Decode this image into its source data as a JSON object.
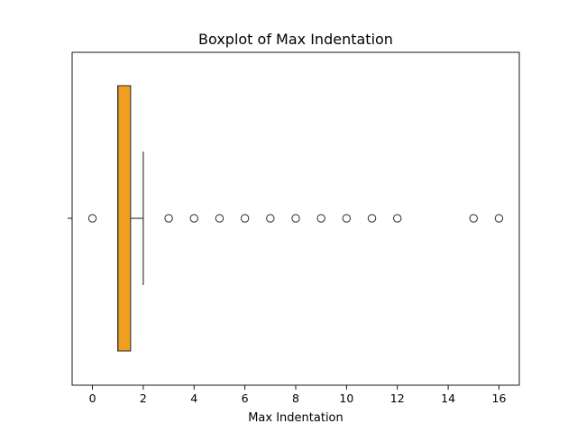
{
  "chart_data": {
    "type": "boxplot",
    "title": "Boxplot of Max Indentation",
    "xlabel": "Max Indentation",
    "ylabel": "",
    "orientation": "horizontal",
    "xlim": [
      -0.8,
      16.8
    ],
    "xticks": [
      0,
      2,
      4,
      6,
      8,
      10,
      12,
      14,
      16
    ],
    "grid": false,
    "box_color": "#f0a01e",
    "line_color": "#3d3d3d",
    "box": {
      "min_whisker": 1.0,
      "q1": 1.0,
      "median": 1.0,
      "q3": 1.5,
      "max_whisker": 2.0
    },
    "outliers": [
      0,
      3,
      4,
      5,
      6,
      7,
      8,
      9,
      10,
      11,
      12,
      15,
      16
    ]
  }
}
